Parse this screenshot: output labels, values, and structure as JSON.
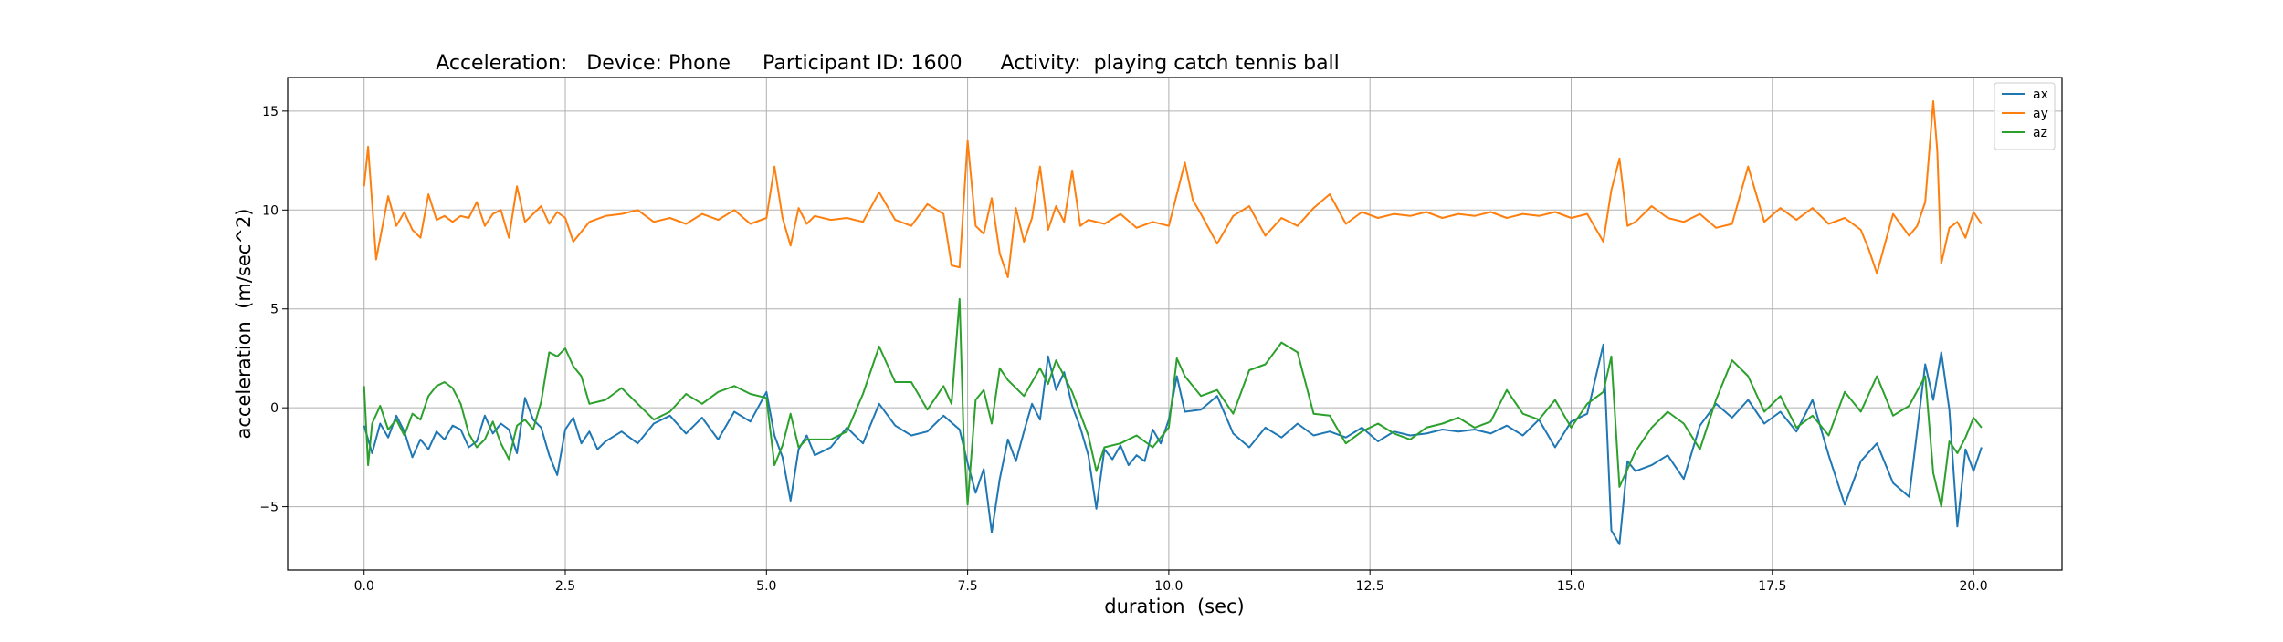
{
  "chart_data": {
    "type": "line",
    "title": "Acceleration:   Device: Phone     Participant ID: 1600      Activity:  playing catch tennis ball",
    "xlabel": "duration  (sec)",
    "ylabel": "acceleration  (m/sec^2)",
    "xlim": [
      -0.95,
      21.1
    ],
    "ylim": [
      -8.2,
      16.7
    ],
    "xticks": [
      0.0,
      2.5,
      5.0,
      7.5,
      10.0,
      12.5,
      15.0,
      17.5,
      20.0
    ],
    "xtick_labels": [
      "0.0",
      "2.5",
      "5.0",
      "7.5",
      "10.0",
      "12.5",
      "15.0",
      "17.5",
      "20.0"
    ],
    "yticks": [
      -5,
      0,
      5,
      10,
      15
    ],
    "ytick_labels": [
      "−5",
      "0",
      "5",
      "10",
      "15"
    ],
    "grid": true,
    "legend_position": "top-right",
    "series": [
      {
        "name": "ax",
        "color": "#1f77b4",
        "x": [
          0.0,
          0.1,
          0.2,
          0.3,
          0.4,
          0.5,
          0.6,
          0.7,
          0.8,
          0.9,
          1.0,
          1.1,
          1.2,
          1.3,
          1.4,
          1.5,
          1.6,
          1.7,
          1.8,
          1.9,
          2.0,
          2.1,
          2.2,
          2.3,
          2.4,
          2.5,
          2.6,
          2.7,
          2.8,
          2.9,
          3.0,
          3.2,
          3.4,
          3.6,
          3.8,
          4.0,
          4.2,
          4.4,
          4.6,
          4.8,
          5.0,
          5.1,
          5.2,
          5.3,
          5.4,
          5.5,
          5.6,
          5.8,
          6.0,
          6.2,
          6.4,
          6.6,
          6.8,
          7.0,
          7.2,
          7.4,
          7.5,
          7.6,
          7.7,
          7.8,
          7.9,
          8.0,
          8.1,
          8.2,
          8.3,
          8.4,
          8.5,
          8.6,
          8.7,
          8.8,
          8.9,
          9.0,
          9.1,
          9.2,
          9.3,
          9.4,
          9.5,
          9.6,
          9.7,
          9.8,
          9.9,
          10.0,
          10.1,
          10.2,
          10.4,
          10.6,
          10.8,
          11.0,
          11.2,
          11.4,
          11.6,
          11.8,
          12.0,
          12.2,
          12.4,
          12.6,
          12.8,
          13.0,
          13.2,
          13.4,
          13.6,
          13.8,
          14.0,
          14.2,
          14.4,
          14.6,
          14.8,
          15.0,
          15.2,
          15.4,
          15.5,
          15.6,
          15.7,
          15.8,
          16.0,
          16.2,
          16.4,
          16.6,
          16.8,
          17.0,
          17.2,
          17.4,
          17.6,
          17.8,
          18.0,
          18.2,
          18.4,
          18.6,
          18.8,
          19.0,
          19.2,
          19.4,
          19.5,
          19.6,
          19.7,
          19.8,
          19.9,
          20.0,
          20.1
        ],
        "values": [
          -0.9,
          -2.3,
          -0.8,
          -1.5,
          -0.4,
          -1.2,
          -2.5,
          -1.6,
          -2.1,
          -1.2,
          -1.6,
          -0.9,
          -1.1,
          -2.0,
          -1.7,
          -0.4,
          -1.3,
          -0.8,
          -1.1,
          -2.3,
          0.5,
          -0.6,
          -1.0,
          -2.4,
          -3.4,
          -1.1,
          -0.5,
          -1.8,
          -1.2,
          -2.1,
          -1.7,
          -1.2,
          -1.8,
          -0.8,
          -0.4,
          -1.3,
          -0.5,
          -1.6,
          -0.2,
          -0.7,
          0.8,
          -1.4,
          -2.5,
          -4.7,
          -2.1,
          -1.4,
          -2.4,
          -2.0,
          -1.0,
          -1.8,
          0.2,
          -0.9,
          -1.4,
          -1.2,
          -0.4,
          -1.1,
          -2.8,
          -4.3,
          -3.1,
          -6.3,
          -3.6,
          -1.6,
          -2.7,
          -1.2,
          0.2,
          -0.6,
          2.6,
          0.9,
          1.8,
          0.1,
          -1.0,
          -2.4,
          -5.1,
          -2.1,
          -2.6,
          -1.9,
          -2.9,
          -2.4,
          -2.7,
          -1.1,
          -1.8,
          -0.6,
          1.6,
          -0.2,
          -0.1,
          0.6,
          -1.3,
          -2.0,
          -1.0,
          -1.5,
          -0.8,
          -1.4,
          -1.2,
          -1.5,
          -1.0,
          -1.7,
          -1.2,
          -1.4,
          -1.3,
          -1.1,
          -1.2,
          -1.1,
          -1.3,
          -0.9,
          -1.4,
          -0.6,
          -2.0,
          -0.7,
          -0.3,
          3.2,
          -6.2,
          -6.9,
          -2.7,
          -3.2,
          -2.9,
          -2.4,
          -3.6,
          -0.9,
          0.2,
          -0.5,
          0.4,
          -0.8,
          -0.2,
          -1.2,
          0.4,
          -2.4,
          -4.9,
          -2.7,
          -1.8,
          -3.8,
          -4.5,
          2.2,
          0.4,
          2.8,
          -0.1,
          -6.0,
          -2.1,
          -3.2,
          -2.0
        ]
      },
      {
        "name": "ay",
        "color": "#ff7f0e",
        "x": [
          0.0,
          0.05,
          0.15,
          0.3,
          0.4,
          0.5,
          0.6,
          0.7,
          0.8,
          0.9,
          1.0,
          1.1,
          1.2,
          1.3,
          1.4,
          1.5,
          1.6,
          1.7,
          1.8,
          1.9,
          2.0,
          2.1,
          2.2,
          2.3,
          2.4,
          2.5,
          2.6,
          2.8,
          3.0,
          3.2,
          3.4,
          3.6,
          3.8,
          4.0,
          4.2,
          4.4,
          4.6,
          4.8,
          5.0,
          5.1,
          5.2,
          5.3,
          5.4,
          5.5,
          5.6,
          5.8,
          6.0,
          6.2,
          6.4,
          6.6,
          6.8,
          7.0,
          7.2,
          7.3,
          7.4,
          7.5,
          7.6,
          7.7,
          7.8,
          7.9,
          8.0,
          8.1,
          8.2,
          8.3,
          8.4,
          8.5,
          8.6,
          8.7,
          8.8,
          8.9,
          9.0,
          9.2,
          9.4,
          9.6,
          9.8,
          10.0,
          10.1,
          10.2,
          10.3,
          10.4,
          10.6,
          10.8,
          11.0,
          11.2,
          11.4,
          11.6,
          11.8,
          12.0,
          12.2,
          12.4,
          12.6,
          12.8,
          13.0,
          13.2,
          13.4,
          13.6,
          13.8,
          14.0,
          14.2,
          14.4,
          14.6,
          14.8,
          15.0,
          15.2,
          15.4,
          15.5,
          15.6,
          15.7,
          15.8,
          16.0,
          16.2,
          16.4,
          16.6,
          16.8,
          17.0,
          17.2,
          17.4,
          17.6,
          17.8,
          18.0,
          18.2,
          18.4,
          18.6,
          18.7,
          18.8,
          19.0,
          19.2,
          19.3,
          19.4,
          19.5,
          19.55,
          19.6,
          19.7,
          19.8,
          19.9,
          20.0,
          20.1
        ],
        "values": [
          11.2,
          13.2,
          7.5,
          10.7,
          9.2,
          9.9,
          9.0,
          8.6,
          10.8,
          9.5,
          9.7,
          9.4,
          9.7,
          9.6,
          10.4,
          9.2,
          9.8,
          10.0,
          8.6,
          11.2,
          9.4,
          9.8,
          10.2,
          9.3,
          9.9,
          9.6,
          8.4,
          9.4,
          9.7,
          9.8,
          10.0,
          9.4,
          9.6,
          9.3,
          9.8,
          9.5,
          10.0,
          9.3,
          9.6,
          12.2,
          9.6,
          8.2,
          10.1,
          9.3,
          9.7,
          9.5,
          9.6,
          9.4,
          10.9,
          9.5,
          9.2,
          10.3,
          9.8,
          7.2,
          7.1,
          13.5,
          9.2,
          8.8,
          10.6,
          7.8,
          6.6,
          10.1,
          8.4,
          9.6,
          12.2,
          9.0,
          10.2,
          9.4,
          12.0,
          9.2,
          9.5,
          9.3,
          9.8,
          9.1,
          9.4,
          9.2,
          10.8,
          12.4,
          10.5,
          9.8,
          8.3,
          9.7,
          10.2,
          8.7,
          9.6,
          9.2,
          10.1,
          10.8,
          9.3,
          9.9,
          9.6,
          9.8,
          9.7,
          9.9,
          9.6,
          9.8,
          9.7,
          9.9,
          9.6,
          9.8,
          9.7,
          9.9,
          9.6,
          9.8,
          8.4,
          11.0,
          12.6,
          9.2,
          9.4,
          10.2,
          9.6,
          9.4,
          9.8,
          9.1,
          9.3,
          12.2,
          9.4,
          10.1,
          9.5,
          10.1,
          9.3,
          9.6,
          9.0,
          8.0,
          6.8,
          9.8,
          8.7,
          9.2,
          10.4,
          15.5,
          13.0,
          7.3,
          9.1,
          9.4,
          8.6,
          9.9,
          9.3
        ]
      },
      {
        "name": "az",
        "color": "#2ca02c",
        "x": [
          0.0,
          0.05,
          0.1,
          0.2,
          0.3,
          0.4,
          0.5,
          0.6,
          0.7,
          0.8,
          0.9,
          1.0,
          1.1,
          1.2,
          1.3,
          1.4,
          1.5,
          1.6,
          1.7,
          1.8,
          1.9,
          2.0,
          2.1,
          2.2,
          2.3,
          2.4,
          2.5,
          2.6,
          2.7,
          2.8,
          3.0,
          3.2,
          3.4,
          3.6,
          3.8,
          4.0,
          4.2,
          4.4,
          4.6,
          4.8,
          5.0,
          5.1,
          5.2,
          5.3,
          5.4,
          5.5,
          5.6,
          5.8,
          6.0,
          6.2,
          6.4,
          6.5,
          6.6,
          6.8,
          7.0,
          7.2,
          7.3,
          7.4,
          7.45,
          7.5,
          7.6,
          7.7,
          7.8,
          7.9,
          8.0,
          8.2,
          8.4,
          8.5,
          8.6,
          8.8,
          9.0,
          9.1,
          9.2,
          9.4,
          9.6,
          9.8,
          10.0,
          10.1,
          10.2,
          10.4,
          10.6,
          10.8,
          11.0,
          11.2,
          11.4,
          11.6,
          11.8,
          12.0,
          12.2,
          12.4,
          12.6,
          12.8,
          13.0,
          13.2,
          13.4,
          13.6,
          13.8,
          14.0,
          14.2,
          14.4,
          14.6,
          14.8,
          15.0,
          15.2,
          15.4,
          15.5,
          15.6,
          15.8,
          16.0,
          16.2,
          16.4,
          16.6,
          16.8,
          17.0,
          17.2,
          17.4,
          17.6,
          17.8,
          18.0,
          18.2,
          18.4,
          18.6,
          18.8,
          19.0,
          19.2,
          19.4,
          19.5,
          19.6,
          19.7,
          19.8,
          19.9,
          20.0,
          20.1
        ],
        "values": [
          1.1,
          -2.9,
          -0.8,
          0.1,
          -1.1,
          -0.6,
          -1.4,
          -0.3,
          -0.6,
          0.6,
          1.1,
          1.3,
          1.0,
          0.2,
          -1.3,
          -2.0,
          -1.6,
          -0.7,
          -1.8,
          -2.6,
          -0.9,
          -0.6,
          -1.1,
          0.3,
          2.8,
          2.6,
          3.0,
          2.1,
          1.6,
          0.2,
          0.4,
          1.0,
          0.2,
          -0.6,
          -0.2,
          0.7,
          0.2,
          0.8,
          1.1,
          0.7,
          0.5,
          -2.9,
          -1.9,
          -0.3,
          -2.0,
          -1.6,
          -1.6,
          -1.6,
          -1.2,
          0.7,
          3.1,
          2.2,
          1.3,
          1.3,
          -0.1,
          1.1,
          0.2,
          5.5,
          -1.4,
          -4.9,
          0.4,
          0.9,
          -0.8,
          2.0,
          1.4,
          0.6,
          2.0,
          1.2,
          2.4,
          0.8,
          -1.4,
          -3.2,
          -2.0,
          -1.8,
          -1.4,
          -2.0,
          -1.0,
          2.5,
          1.6,
          0.6,
          0.9,
          -0.3,
          1.9,
          2.2,
          3.3,
          2.8,
          -0.3,
          -0.4,
          -1.8,
          -1.2,
          -0.8,
          -1.3,
          -1.6,
          -1.0,
          -0.8,
          -0.5,
          -1.0,
          -0.7,
          0.9,
          -0.3,
          -0.6,
          0.4,
          -1.0,
          0.2,
          0.8,
          2.6,
          -4.0,
          -2.2,
          -1.0,
          -0.2,
          -0.8,
          -2.1,
          0.4,
          2.4,
          1.6,
          -0.2,
          0.6,
          -1.0,
          -0.4,
          -1.4,
          0.8,
          -0.2,
          1.6,
          -0.4,
          0.1,
          1.6,
          -3.3,
          -5.0,
          -1.7,
          -2.3,
          -1.5,
          -0.5,
          -1.0
        ]
      }
    ]
  }
}
